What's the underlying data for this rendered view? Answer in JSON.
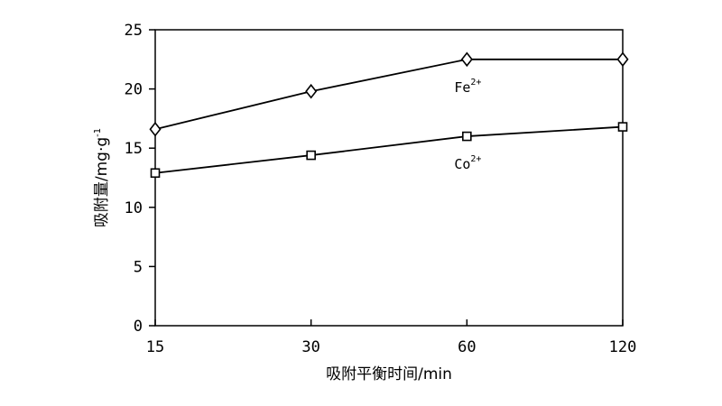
{
  "chart_data": {
    "type": "line",
    "xlabel": "吸附平衡时间/min",
    "ylabel": {
      "main": "吸附量/mg·g",
      "superscript": "-1"
    },
    "categories": [
      "15",
      "30",
      "60",
      "120"
    ],
    "yticks": [
      "0",
      "5",
      "10",
      "15",
      "20",
      "25"
    ],
    "ylim": [
      0,
      25
    ],
    "grid": false,
    "series": [
      {
        "name": "Fe",
        "superscript": "2+",
        "marker": "diamond",
        "values": [
          16.6,
          19.8,
          22.5,
          22.5
        ]
      },
      {
        "name": "Co",
        "superscript": "2+",
        "marker": "square",
        "values": [
          12.9,
          14.4,
          16.0,
          16.8
        ]
      }
    ]
  }
}
